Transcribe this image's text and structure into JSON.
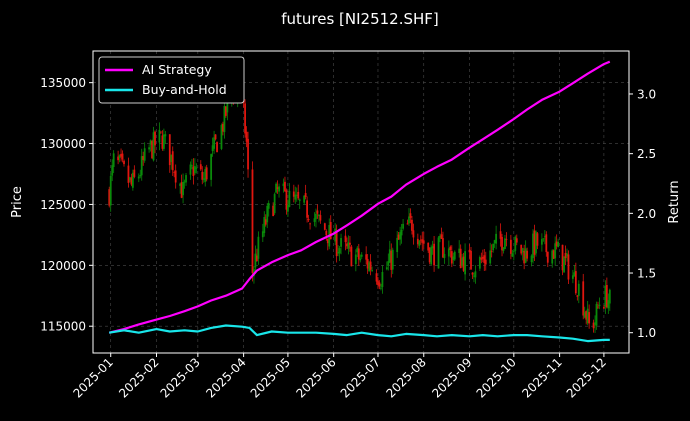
{
  "chart_data": {
    "type": "line",
    "title": "futures [NI2512.SHF]",
    "ylabel_left": "Price",
    "ylabel_right": "Return",
    "x_ticks": [
      "2025-01",
      "2025-02",
      "2025-03",
      "2025-04",
      "2025-05",
      "2025-06",
      "2025-07",
      "2025-08",
      "2025-09",
      "2025-10",
      "2025-11",
      "2025-12"
    ],
    "left_ticks": [
      115000,
      120000,
      125000,
      130000,
      135000
    ],
    "left_tick_labels": [
      "115000",
      "120000",
      "125000",
      "130000",
      "135000"
    ],
    "right_ticks": [
      1.0,
      1.5,
      2.0,
      2.5,
      3.0
    ],
    "right_tick_labels": [
      "1.0",
      "1.5",
      "2.0",
      "2.5",
      "3.0"
    ],
    "left_ylim": [
      112800,
      137600
    ],
    "right_ylim": [
      0.83,
      3.36
    ],
    "xlim": [
      "2024-12-20",
      "2025-12-18"
    ],
    "grid": true,
    "legend_position": "top-left",
    "colors": {
      "background": "#000000",
      "up_candle": "#0a8a0a",
      "down_candle": "#e0160f",
      "ai_strategy": "#ff00ff",
      "buy_and_hold": "#19e6ea"
    },
    "candle_anchors": [
      [
        "2024-12-31",
        126000
      ],
      [
        "2025-01-03",
        128500
      ],
      [
        "2025-01-08",
        128000
      ],
      [
        "2025-01-15",
        126500
      ],
      [
        "2025-01-20",
        127500
      ],
      [
        "2025-01-27",
        129500
      ],
      [
        "2025-02-05",
        130500
      ],
      [
        "2025-02-12",
        128500
      ],
      [
        "2025-02-19",
        126000
      ],
      [
        "2025-02-26",
        128000
      ],
      [
        "2025-03-05",
        127000
      ],
      [
        "2025-03-12",
        129500
      ],
      [
        "2025-03-19",
        132000
      ],
      [
        "2025-03-24",
        134500
      ],
      [
        "2025-03-31",
        133500
      ],
      [
        "2025-04-03",
        130000
      ],
      [
        "2025-04-07",
        119500
      ],
      [
        "2025-04-10",
        121000
      ],
      [
        "2025-04-17",
        124000
      ],
      [
        "2025-04-24",
        126000
      ],
      [
        "2025-05-01",
        125500
      ],
      [
        "2025-05-08",
        125000
      ],
      [
        "2025-05-15",
        124500
      ],
      [
        "2025-05-22",
        123500
      ],
      [
        "2025-05-29",
        122500
      ],
      [
        "2025-06-05",
        121500
      ],
      [
        "2025-06-12",
        121000
      ],
      [
        "2025-06-19",
        120500
      ],
      [
        "2025-06-26",
        120000
      ],
      [
        "2025-07-03",
        119000
      ],
      [
        "2025-07-10",
        120500
      ],
      [
        "2025-07-17",
        122500
      ],
      [
        "2025-07-24",
        123500
      ],
      [
        "2025-07-31",
        122000
      ],
      [
        "2025-08-07",
        121000
      ],
      [
        "2025-08-14",
        121500
      ],
      [
        "2025-08-21",
        120800
      ],
      [
        "2025-08-28",
        120500
      ],
      [
        "2025-09-04",
        120000
      ],
      [
        "2025-09-11",
        120500
      ],
      [
        "2025-09-18",
        121500
      ],
      [
        "2025-09-25",
        122500
      ],
      [
        "2025-10-02",
        121500
      ],
      [
        "2025-10-09",
        121000
      ],
      [
        "2025-10-16",
        121800
      ],
      [
        "2025-10-23",
        121300
      ],
      [
        "2025-10-30",
        121200
      ],
      [
        "2025-11-06",
        120000
      ],
      [
        "2025-11-13",
        118500
      ],
      [
        "2025-11-18",
        116500
      ],
      [
        "2025-11-21",
        115000
      ],
      [
        "2025-11-25",
        115500
      ],
      [
        "2025-11-28",
        117000
      ],
      [
        "2025-12-03",
        117500
      ],
      [
        "2025-12-05",
        117000
      ]
    ],
    "series": [
      {
        "name": "AI Strategy",
        "x": [
          "2024-12-31",
          "2025-01-10",
          "2025-01-20",
          "2025-02-01",
          "2025-02-10",
          "2025-02-20",
          "2025-03-01",
          "2025-03-10",
          "2025-03-20",
          "2025-03-31",
          "2025-04-05",
          "2025-04-10",
          "2025-04-20",
          "2025-05-01",
          "2025-05-10",
          "2025-05-20",
          "2025-06-01",
          "2025-06-10",
          "2025-06-20",
          "2025-07-01",
          "2025-07-10",
          "2025-07-20",
          "2025-08-01",
          "2025-08-10",
          "2025-08-20",
          "2025-09-01",
          "2025-09-10",
          "2025-09-20",
          "2025-10-01",
          "2025-10-10",
          "2025-10-20",
          "2025-11-01",
          "2025-11-10",
          "2025-11-20",
          "2025-12-01",
          "2025-12-05"
        ],
        "values": [
          1.0,
          1.03,
          1.07,
          1.11,
          1.14,
          1.18,
          1.22,
          1.27,
          1.31,
          1.37,
          1.45,
          1.52,
          1.59,
          1.65,
          1.69,
          1.76,
          1.83,
          1.9,
          1.98,
          2.08,
          2.14,
          2.24,
          2.33,
          2.39,
          2.45,
          2.55,
          2.62,
          2.7,
          2.79,
          2.87,
          2.95,
          3.02,
          3.09,
          3.17,
          3.25,
          3.27
        ]
      },
      {
        "name": "Buy-and-Hold",
        "x": [
          "2024-12-31",
          "2025-01-10",
          "2025-01-20",
          "2025-02-01",
          "2025-02-10",
          "2025-02-20",
          "2025-03-01",
          "2025-03-10",
          "2025-03-20",
          "2025-03-31",
          "2025-04-05",
          "2025-04-10",
          "2025-04-20",
          "2025-05-01",
          "2025-05-10",
          "2025-05-20",
          "2025-06-01",
          "2025-06-10",
          "2025-06-20",
          "2025-07-01",
          "2025-07-10",
          "2025-07-20",
          "2025-08-01",
          "2025-08-10",
          "2025-08-20",
          "2025-09-01",
          "2025-09-10",
          "2025-09-20",
          "2025-10-01",
          "2025-10-10",
          "2025-10-20",
          "2025-11-01",
          "2025-11-10",
          "2025-11-20",
          "2025-12-01",
          "2025-12-05"
        ],
        "values": [
          1.0,
          1.02,
          1.0,
          1.03,
          1.01,
          1.02,
          1.01,
          1.04,
          1.06,
          1.05,
          1.04,
          0.98,
          1.01,
          1.0,
          1.0,
          1.0,
          0.99,
          0.98,
          1.0,
          0.98,
          0.97,
          0.99,
          0.98,
          0.97,
          0.98,
          0.97,
          0.98,
          0.97,
          0.98,
          0.98,
          0.97,
          0.96,
          0.95,
          0.93,
          0.94,
          0.94
        ]
      }
    ]
  }
}
